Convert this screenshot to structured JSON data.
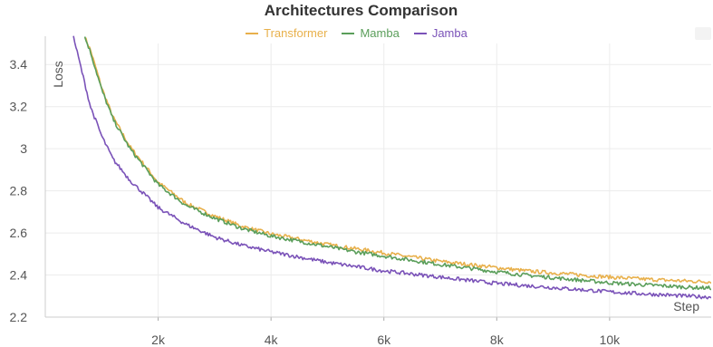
{
  "chart_data": {
    "type": "line",
    "title": "Architectures Comparison",
    "xlabel": "Step",
    "ylabel": "Loss",
    "xlim": [
      0,
      11800
    ],
    "ylim": [
      2.2,
      3.5
    ],
    "x_ticks": [
      2000,
      4000,
      6000,
      8000,
      10000
    ],
    "x_tick_labels": [
      "2k",
      "4k",
      "6k",
      "8k",
      "10k"
    ],
    "y_ticks": [
      2.2,
      2.4,
      2.6,
      2.8,
      3.0,
      3.2,
      3.4
    ],
    "y_tick_labels": [
      "2.2",
      "2.4",
      "2.6",
      "2.8",
      "3",
      "3.2",
      "3.4"
    ],
    "grid": true,
    "legend_position": "top-center",
    "series": [
      {
        "name": "Transformer",
        "color": "#e8b04b",
        "x": [
          700,
          800,
          1000,
          1200,
          1500,
          2000,
          2500,
          3000,
          3500,
          4000,
          4500,
          5000,
          5500,
          6000,
          6500,
          7000,
          7500,
          8000,
          8500,
          9000,
          9500,
          10000,
          10500,
          11000,
          11500,
          11800
        ],
        "y": [
          3.53,
          3.47,
          3.29,
          3.15,
          3.01,
          2.84,
          2.74,
          2.68,
          2.63,
          2.595,
          2.57,
          2.545,
          2.525,
          2.505,
          2.485,
          2.465,
          2.45,
          2.435,
          2.42,
          2.41,
          2.4,
          2.39,
          2.382,
          2.375,
          2.37,
          2.368
        ]
      },
      {
        "name": "Mamba",
        "color": "#5a9e5a",
        "x": [
          700,
          800,
          1000,
          1200,
          1500,
          2000,
          2500,
          3000,
          3500,
          4000,
          4500,
          5000,
          5500,
          6000,
          6500,
          7000,
          7500,
          8000,
          8500,
          9000,
          9500,
          10000,
          10500,
          11000,
          11500,
          11800
        ],
        "y": [
          3.53,
          3.46,
          3.28,
          3.14,
          3.0,
          2.83,
          2.73,
          2.67,
          2.62,
          2.585,
          2.56,
          2.535,
          2.51,
          2.49,
          2.47,
          2.45,
          2.433,
          2.415,
          2.4,
          2.387,
          2.375,
          2.363,
          2.355,
          2.348,
          2.34,
          2.338
        ]
      },
      {
        "name": "Jamba",
        "color": "#7a52b8",
        "x": [
          500,
          600,
          800,
          1000,
          1200,
          1500,
          2000,
          2500,
          3000,
          3500,
          4000,
          4500,
          5000,
          5500,
          6000,
          6500,
          7000,
          7500,
          8000,
          8500,
          9000,
          9500,
          10000,
          10500,
          11000,
          11500,
          11800
        ],
        "y": [
          3.53,
          3.42,
          3.2,
          3.06,
          2.95,
          2.85,
          2.72,
          2.64,
          2.58,
          2.54,
          2.51,
          2.485,
          2.46,
          2.44,
          2.42,
          2.405,
          2.39,
          2.375,
          2.36,
          2.35,
          2.34,
          2.33,
          2.32,
          2.312,
          2.305,
          2.298,
          2.295
        ]
      }
    ]
  }
}
